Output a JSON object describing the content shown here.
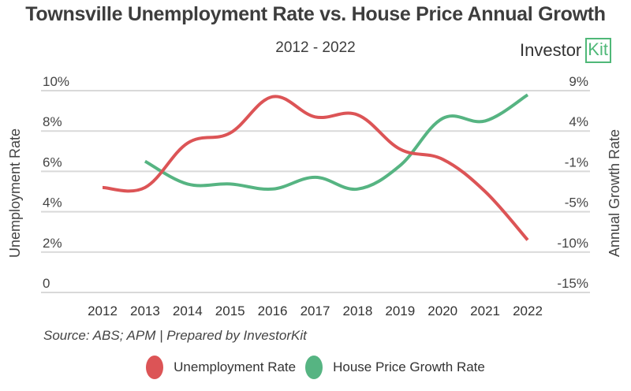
{
  "header": {
    "title": "Townsville Unemployment Rate vs. House Price Annual Growth",
    "subtitle": "2012 - 2022",
    "logo_text": "Investor",
    "logo_kit": "Kit"
  },
  "source": "Source: ABS; APM | Prepared by InvestorKit",
  "colors": {
    "unemployment": "#dc5456",
    "growth": "#56b482",
    "grid": "#d9d9d9",
    "axis_text": "#444444"
  },
  "chart_data": {
    "type": "line",
    "title": "Townsville Unemployment Rate vs. House Price Annual Growth",
    "subtitle": "2012 - 2022",
    "x": [
      "2012",
      "2013",
      "2014",
      "2015",
      "2016",
      "2017",
      "2018",
      "2019",
      "2020",
      "2021",
      "2022"
    ],
    "ylabel": "Unemployment Rate",
    "y2label": "Annual Growth Rate",
    "ylim": [
      0,
      10
    ],
    "y2lim": [
      -15,
      9
    ],
    "yticks": [
      "0",
      "2%",
      "4%",
      "6%",
      "8%",
      "10%"
    ],
    "y2ticks": [
      "-15%",
      "-10%",
      "-5%",
      "-1%",
      "4%",
      "9%"
    ],
    "grid": true,
    "legend_position": "bottom",
    "series": [
      {
        "name": "Unemployment Rate",
        "axis": "left",
        "values": [
          5.2,
          5.2,
          7.4,
          7.9,
          9.7,
          8.7,
          8.8,
          7.1,
          6.6,
          5.0,
          2.6
        ]
      },
      {
        "name": "House Price Growth Rate",
        "axis": "right",
        "values": [
          null,
          0.6,
          -2.1,
          -2.1,
          -2.7,
          -1.3,
          -2.7,
          0.1,
          5.7,
          5.4,
          8.5
        ]
      }
    ]
  }
}
